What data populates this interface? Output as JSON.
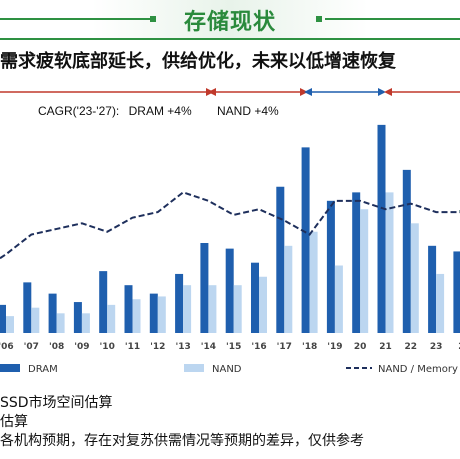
{
  "header": {
    "title": "存储现状"
  },
  "subtitle": "需求疲软底部延长，供给优化，未来以低增速恢复",
  "cagr": {
    "prefix": "CAGR('23-'27):",
    "dram": "DRAM +4%",
    "nand": "NAND +4%"
  },
  "notes": [
    "SSD市场空间估算",
    "估算",
    "各机构预期，存在对复苏供需情况等预期的差异，仅供参考"
  ],
  "colors": {
    "dram": "#1f5fae",
    "nand": "#bcd6f0",
    "memory_line": "#1e2f5c",
    "accent_red": "#c0392b",
    "accent_green": "#2e9142"
  },
  "chart_data": {
    "type": "bar",
    "categories": [
      "'06",
      "'07",
      "'08",
      "'09",
      "'10",
      "'11",
      "'12",
      "'13",
      "'14",
      "'15",
      "'16",
      "'17",
      "'18",
      "'19",
      "20",
      "21",
      "22",
      "23",
      "2"
    ],
    "series": [
      {
        "name": "DRAM",
        "type": "bar",
        "values": [
          10,
          18,
          14,
          11,
          22,
          17,
          14,
          21,
          32,
          30,
          25,
          52,
          66,
          47,
          50,
          74,
          58,
          31,
          29
        ]
      },
      {
        "name": "NAND",
        "type": "bar",
        "values": [
          6,
          9,
          7,
          7,
          10,
          12,
          13,
          17,
          17,
          17,
          20,
          31,
          36,
          24,
          44,
          50,
          39,
          21,
          21
        ]
      },
      {
        "name": "NAND / Memory",
        "type": "line",
        "style": "dashed",
        "values": [
          28,
          35,
          37,
          39,
          36,
          41,
          43,
          50,
          47,
          42,
          44,
          40,
          35,
          47,
          47,
          44,
          46,
          43,
          43
        ]
      }
    ],
    "legend": [
      "DRAM",
      "NAND",
      "NAND / Memory"
    ],
    "legend_placement": "bottom",
    "ylim": [
      0,
      80
    ],
    "grid": false
  }
}
